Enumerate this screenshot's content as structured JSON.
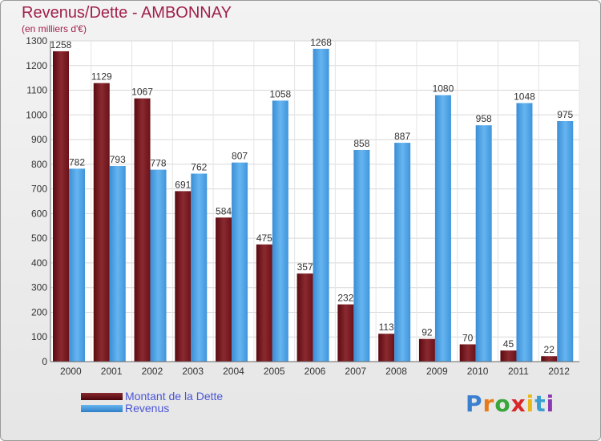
{
  "title": "Revenus/Dette - AMBONNAY",
  "subtitle": "(en milliers d'€)",
  "chart_data": {
    "type": "bar",
    "categories": [
      "2000",
      "2001",
      "2002",
      "2003",
      "2004",
      "2005",
      "2006",
      "2007",
      "2008",
      "2009",
      "2010",
      "2011",
      "2012"
    ],
    "series": [
      {
        "name": "Montant de la Dette",
        "color": "#7a1a20",
        "values": [
          1258,
          1129,
          1067,
          691,
          584,
          475,
          357,
          232,
          113,
          92,
          70,
          45,
          22
        ]
      },
      {
        "name": "Revenus",
        "color": "#4aa3e8",
        "values": [
          782,
          793,
          778,
          762,
          807,
          1058,
          1268,
          858,
          887,
          1080,
          958,
          1048,
          975
        ]
      }
    ],
    "ylim": [
      0,
      1300
    ],
    "yticks": [
      0,
      100,
      200,
      300,
      400,
      500,
      600,
      700,
      800,
      900,
      1000,
      1100,
      1200,
      1300
    ],
    "grid": true,
    "legend_position": "bottom-left"
  },
  "legend": [
    {
      "label": "Montant de la Dette",
      "color": "#6a0f15"
    },
    {
      "label": "Revenus",
      "color": "#4aa3e8"
    }
  ],
  "logo": {
    "text": "Proxiti"
  }
}
